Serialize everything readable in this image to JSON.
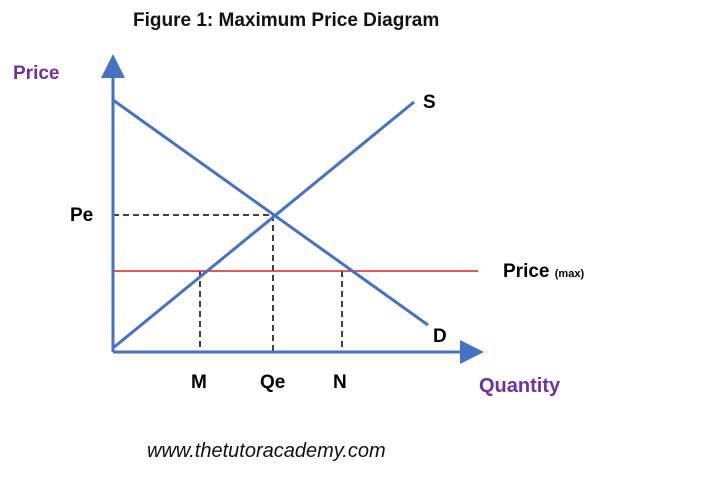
{
  "title": "Figure 1: Maximum Price Diagram",
  "y_axis_label": "Price",
  "x_axis_label": "Quantity",
  "supply_label": "S",
  "demand_label": "D",
  "price_max_label": "Price",
  "price_max_sub": "(max)",
  "pe_label": "Pe",
  "m_label": "M",
  "qe_label": "Qe",
  "n_label": "N",
  "website": "www.thetutoracademy.com",
  "colors": {
    "curves": "#4472c4",
    "price_max": "#e02020",
    "axis_labels": "#7030a0",
    "dashed": "#000000"
  }
}
